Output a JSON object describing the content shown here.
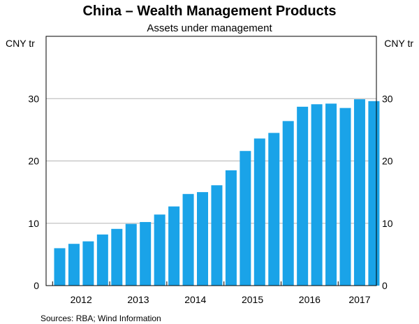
{
  "chart_data": {
    "type": "bar",
    "title": "China – Wealth Management Products",
    "subtitle": "Assets under management",
    "ylabel_left": "CNY tr",
    "ylabel_right": "CNY tr",
    "ylim": [
      0,
      40
    ],
    "yticks": [
      0,
      10,
      20,
      30
    ],
    "grid": true,
    "bar_color": "#1aa3e8",
    "year_labels": [
      "2012",
      "2013",
      "2014",
      "2015",
      "2016",
      "2017"
    ],
    "periods": [
      "2012-Q1",
      "2012-Q2",
      "2012-Q3",
      "2012-Q4",
      "2013-Q1",
      "2013-Q2",
      "2013-Q3",
      "2013-Q4",
      "2014-Q1",
      "2014-Q2",
      "2014-Q3",
      "2014-Q4",
      "2015-Q1",
      "2015-Q2",
      "2015-Q3",
      "2015-Q4",
      "2016-Q1",
      "2016-Q2",
      "2016-Q3",
      "2016-Q4",
      "2017-Q1",
      "2017-Q2",
      "2017-Q3"
    ],
    "values": [
      6.0,
      6.7,
      7.1,
      8.2,
      9.1,
      9.9,
      10.2,
      11.4,
      12.7,
      14.7,
      15.0,
      16.1,
      18.5,
      21.6,
      23.6,
      24.5,
      26.4,
      28.7,
      29.1,
      29.2,
      28.5,
      29.9,
      29.6
    ],
    "source": "Sources: RBA; Wind Information"
  }
}
